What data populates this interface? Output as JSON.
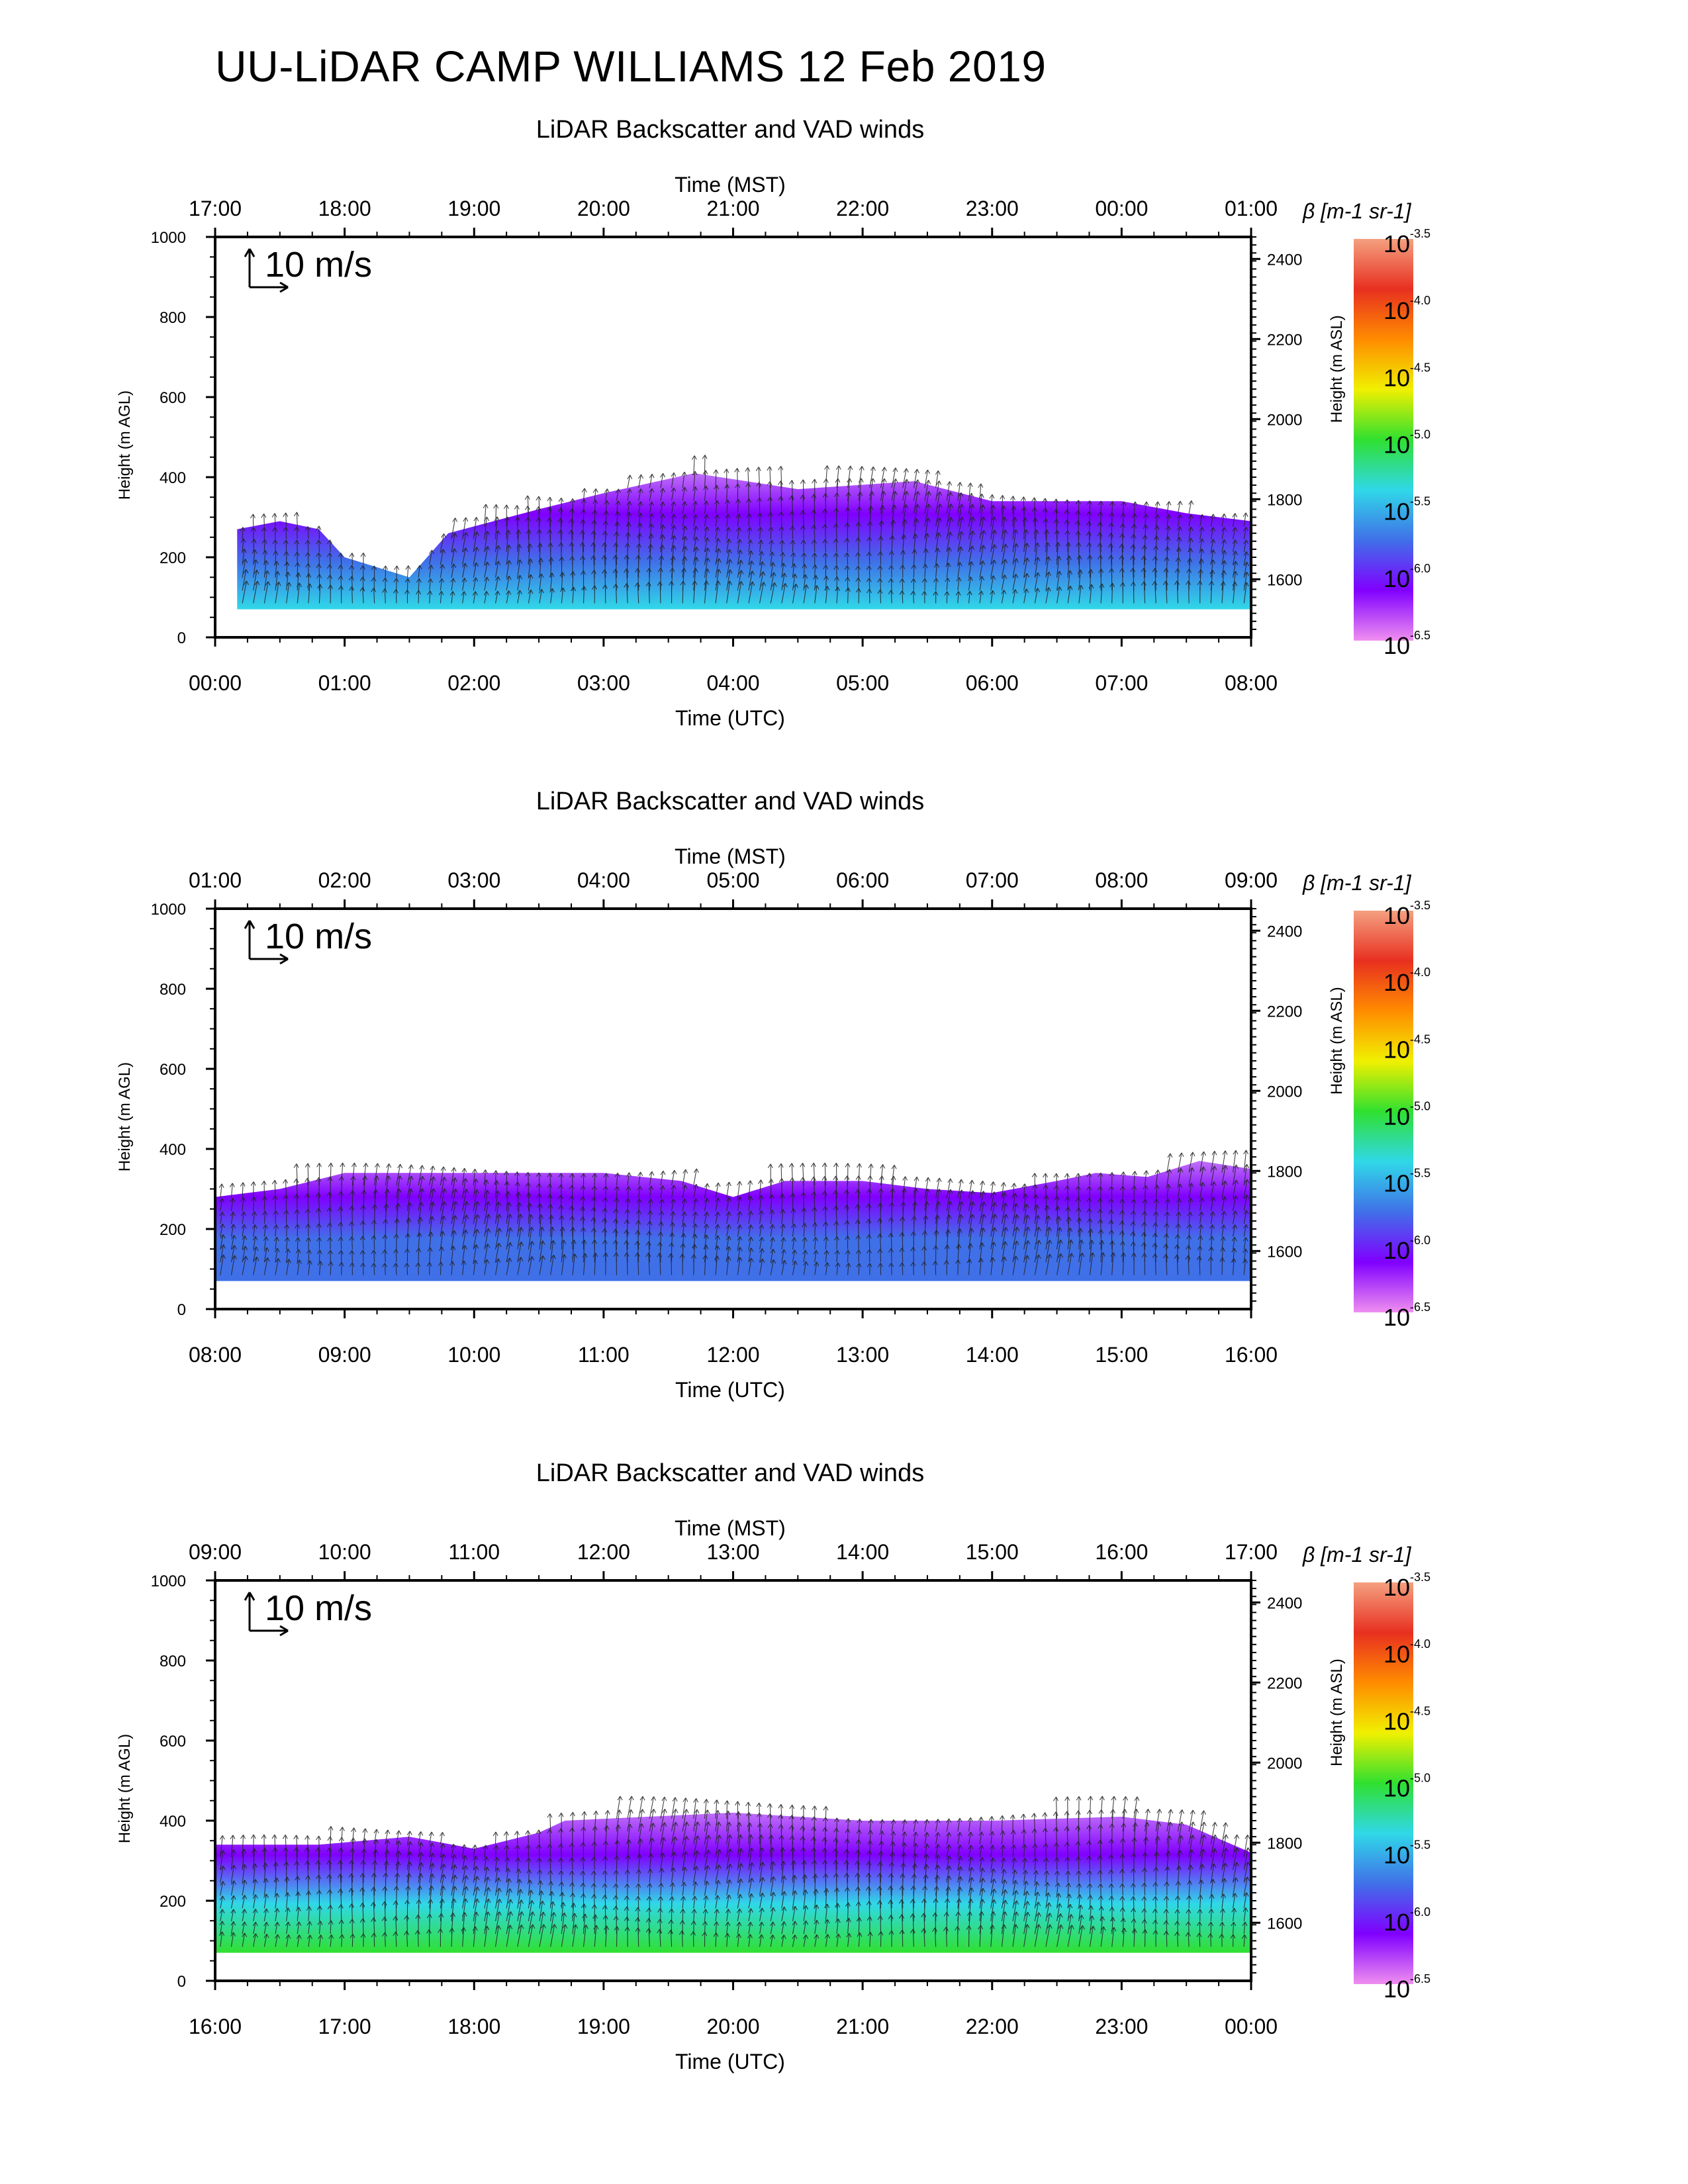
{
  "title": "UU-LiDAR CAMP WILLIAMS 12 Feb 2019",
  "panel_title": "LiDAR Backscatter and VAD winds",
  "top_axis_label": "Time (MST)",
  "bottom_axis_label": "Time (UTC)",
  "left_axis_label": "Height (m AGL)",
  "right_axis_label": "Height (m ASL)",
  "wind_scale_label": "10 m/s",
  "colorbar": {
    "label": "β [m-1 sr-1]",
    "tick_base": "10",
    "tick_exponents": [
      "-3.5",
      "-4.0",
      "-4.5",
      "-5.0",
      "-5.5",
      "-6.0",
      "-6.5"
    ],
    "colors": [
      "#f4a080",
      "#e83020",
      "#ff8c00",
      "#f0f000",
      "#30e030",
      "#30d8e8",
      "#4070e8",
      "#8000ff",
      "#f08ff0"
    ]
  },
  "chart_data": [
    {
      "type": "heatmap",
      "title": "LiDAR Backscatter and VAD winds",
      "xlabel": "Time (UTC)",
      "x2label": "Time (MST)",
      "ylabel": "Height (m AGL)",
      "y2label": "Height (m ASL)",
      "utc_ticks": [
        "00:00",
        "01:00",
        "02:00",
        "03:00",
        "04:00",
        "05:00",
        "06:00",
        "07:00",
        "08:00"
      ],
      "mst_ticks": [
        "17:00",
        "18:00",
        "19:00",
        "20:00",
        "21:00",
        "22:00",
        "23:00",
        "00:00",
        "01:00"
      ],
      "agl_ticks": [
        "0",
        "200",
        "400",
        "600",
        "800",
        "1000"
      ],
      "asl_ticks": [
        "1600",
        "1800",
        "2000",
        "2200",
        "2400"
      ],
      "ylim": [
        0,
        1000
      ],
      "y2lim": [
        1455,
        2455
      ],
      "colorbar_range_log10": [
        -6.5,
        -3.5
      ],
      "boundary_layer_top_m": [
        [
          0.17,
          270
        ],
        [
          0.5,
          290
        ],
        [
          0.8,
          270
        ],
        [
          1.0,
          200
        ],
        [
          1.5,
          150
        ],
        [
          1.8,
          260
        ],
        [
          2.5,
          320
        ],
        [
          3.0,
          360
        ],
        [
          3.7,
          410
        ],
        [
          4.5,
          370
        ],
        [
          5.4,
          390
        ],
        [
          6.0,
          340
        ],
        [
          7.0,
          340
        ],
        [
          7.5,
          310
        ],
        [
          8.0,
          290
        ]
      ],
      "core_log10_backscatter": -6.0
    },
    {
      "type": "heatmap",
      "title": "LiDAR Backscatter and VAD winds",
      "xlabel": "Time (UTC)",
      "x2label": "Time (MST)",
      "ylabel": "Height (m AGL)",
      "y2label": "Height (m ASL)",
      "utc_ticks": [
        "08:00",
        "09:00",
        "10:00",
        "11:00",
        "12:00",
        "13:00",
        "14:00",
        "15:00",
        "16:00"
      ],
      "mst_ticks": [
        "01:00",
        "02:00",
        "03:00",
        "04:00",
        "05:00",
        "06:00",
        "07:00",
        "08:00",
        "09:00"
      ],
      "agl_ticks": [
        "0",
        "200",
        "400",
        "600",
        "800",
        "1000"
      ],
      "asl_ticks": [
        "1600",
        "1800",
        "2000",
        "2200",
        "2400"
      ],
      "ylim": [
        0,
        1000
      ],
      "y2lim": [
        1455,
        2455
      ],
      "colorbar_range_log10": [
        -6.5,
        -3.5
      ],
      "boundary_layer_top_m": [
        [
          8.0,
          280
        ],
        [
          8.5,
          300
        ],
        [
          9.0,
          340
        ],
        [
          10.0,
          340
        ],
        [
          11.0,
          340
        ],
        [
          11.6,
          320
        ],
        [
          12.0,
          280
        ],
        [
          12.4,
          320
        ],
        [
          13.0,
          320
        ],
        [
          13.5,
          300
        ],
        [
          14.0,
          290
        ],
        [
          14.5,
          320
        ],
        [
          14.8,
          340
        ],
        [
          15.2,
          330
        ],
        [
          15.6,
          370
        ],
        [
          16.0,
          350
        ]
      ],
      "core_log10_backscatter": -6.1
    },
    {
      "type": "heatmap",
      "title": "LiDAR Backscatter and VAD winds",
      "xlabel": "Time (UTC)",
      "x2label": "Time (MST)",
      "ylabel": "Height (m AGL)",
      "y2label": "Height (m ASL)",
      "utc_ticks": [
        "16:00",
        "17:00",
        "18:00",
        "19:00",
        "20:00",
        "21:00",
        "22:00",
        "23:00",
        "00:00"
      ],
      "mst_ticks": [
        "09:00",
        "10:00",
        "11:00",
        "12:00",
        "13:00",
        "14:00",
        "15:00",
        "16:00",
        "17:00"
      ],
      "agl_ticks": [
        "0",
        "200",
        "400",
        "600",
        "800",
        "1000"
      ],
      "asl_ticks": [
        "1600",
        "1800",
        "2000",
        "2200",
        "2400"
      ],
      "ylim": [
        0,
        1000
      ],
      "y2lim": [
        1455,
        2455
      ],
      "colorbar_range_log10": [
        -6.5,
        -3.5
      ],
      "boundary_layer_top_m": [
        [
          16.0,
          340
        ],
        [
          16.8,
          340
        ],
        [
          17.5,
          360
        ],
        [
          18.0,
          330
        ],
        [
          18.5,
          370
        ],
        [
          18.7,
          400
        ],
        [
          20.0,
          420
        ],
        [
          21.0,
          400
        ],
        [
          22.0,
          400
        ],
        [
          23.0,
          410
        ],
        [
          23.5,
          390
        ],
        [
          24.0,
          320
        ]
      ],
      "core_log10_backscatter": -5.6
    }
  ]
}
